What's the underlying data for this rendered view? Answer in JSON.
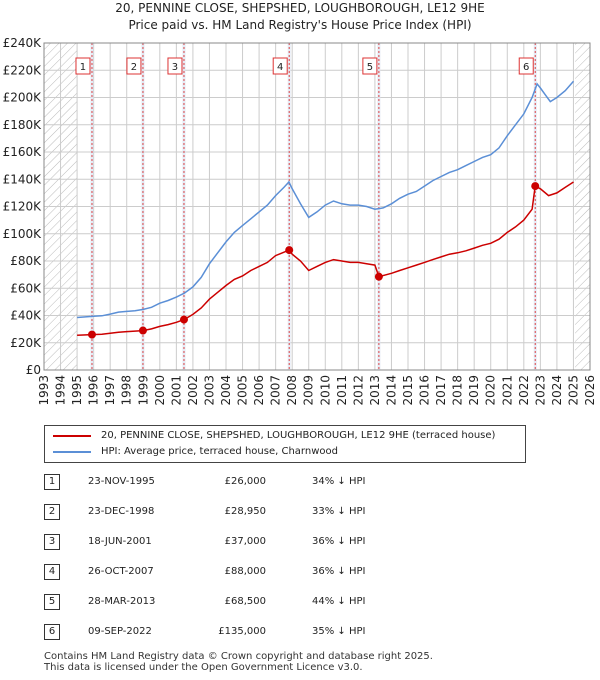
{
  "title_line1": "20, PENNINE CLOSE, SHEPSHED, LOUGHBOROUGH, LE12 9HE",
  "title_line2": "Price paid vs. HM Land Registry's House Price Index (HPI)",
  "colors": {
    "property": "#cc0000",
    "hpi": "#5b8fd6",
    "grid": "#cccccc",
    "shade": "#dfe6f3"
  },
  "legend": {
    "property": "20, PENNINE CLOSE, SHEPSHED, LOUGHBOROUGH, LE12 9HE (terraced house)",
    "hpi": "HPI: Average price, terraced house, Charnwood"
  },
  "sales": [
    {
      "num": "1",
      "date": "23-NOV-1995",
      "price": "£26,000",
      "hpi": "34% ↓ HPI"
    },
    {
      "num": "2",
      "date": "23-DEC-1998",
      "price": "£28,950",
      "hpi": "33% ↓ HPI"
    },
    {
      "num": "3",
      "date": "18-JUN-2001",
      "price": "£37,000",
      "hpi": "36% ↓ HPI"
    },
    {
      "num": "4",
      "date": "26-OCT-2007",
      "price": "£88,000",
      "hpi": "36% ↓ HPI"
    },
    {
      "num": "5",
      "date": "28-MAR-2013",
      "price": "£68,500",
      "hpi": "44% ↓ HPI"
    },
    {
      "num": "6",
      "date": "09-SEP-2022",
      "price": "£135,000",
      "hpi": "35% ↓ HPI"
    }
  ],
  "footer_line1": "Contains HM Land Registry data © Crown copyright and database right 2025.",
  "footer_line2": "This data is licensed under the Open Government Licence v3.0.",
  "chart_data": {
    "type": "line",
    "title": "Price paid vs. HM Land Registry's House Price Index (HPI)",
    "xlim": [
      1993,
      2026
    ],
    "ylim": [
      0,
      240000
    ],
    "x_ticks": [
      1993,
      1994,
      1995,
      1996,
      1997,
      1998,
      1999,
      2000,
      2001,
      2002,
      2003,
      2004,
      2005,
      2006,
      2007,
      2008,
      2009,
      2010,
      2011,
      2012,
      2013,
      2014,
      2015,
      2016,
      2017,
      2018,
      2019,
      2020,
      2021,
      2022,
      2023,
      2024,
      2025,
      2026
    ],
    "y_ticks": [
      {
        "value": 0,
        "label": "£0"
      },
      {
        "value": 20000,
        "label": "£20K"
      },
      {
        "value": 40000,
        "label": "£40K"
      },
      {
        "value": 60000,
        "label": "£60K"
      },
      {
        "value": 80000,
        "label": "£80K"
      },
      {
        "value": 100000,
        "label": "£100K"
      },
      {
        "value": 120000,
        "label": "£120K"
      },
      {
        "value": 140000,
        "label": "£140K"
      },
      {
        "value": 160000,
        "label": "£160K"
      },
      {
        "value": 180000,
        "label": "£180K"
      },
      {
        "value": 200000,
        "label": "£200K"
      },
      {
        "value": 220000,
        "label": "£220K"
      },
      {
        "value": 240000,
        "label": "£240K"
      }
    ],
    "hatched_ranges": [
      [
        1993,
        1995.0
      ],
      [
        2025.1,
        2026
      ]
    ],
    "series": [
      {
        "name": "HPI: Average price, terraced house, Charnwood",
        "points": [
          [
            1995.0,
            38500
          ],
          [
            1995.5,
            39000
          ],
          [
            1996.0,
            39500
          ],
          [
            1996.5,
            39800
          ],
          [
            1997.0,
            41000
          ],
          [
            1997.5,
            42500
          ],
          [
            1998.0,
            43000
          ],
          [
            1998.5,
            43500
          ],
          [
            1999.0,
            44500
          ],
          [
            1999.5,
            46000
          ],
          [
            2000.0,
            49000
          ],
          [
            2000.5,
            51000
          ],
          [
            2001.0,
            53500
          ],
          [
            2001.5,
            56500
          ],
          [
            2002.0,
            61000
          ],
          [
            2002.5,
            68000
          ],
          [
            2003.0,
            78000
          ],
          [
            2003.5,
            86000
          ],
          [
            2004.0,
            94000
          ],
          [
            2004.5,
            101000
          ],
          [
            2005.0,
            106000
          ],
          [
            2005.5,
            111000
          ],
          [
            2006.0,
            116000
          ],
          [
            2006.5,
            121000
          ],
          [
            2007.0,
            128000
          ],
          [
            2007.5,
            134000
          ],
          [
            2007.8,
            138000
          ],
          [
            2008.0,
            133000
          ],
          [
            2008.5,
            122000
          ],
          [
            2009.0,
            112000
          ],
          [
            2009.5,
            116000
          ],
          [
            2010.0,
            121000
          ],
          [
            2010.5,
            124000
          ],
          [
            2011.0,
            122000
          ],
          [
            2011.5,
            121000
          ],
          [
            2012.0,
            121000
          ],
          [
            2012.5,
            120000
          ],
          [
            2013.0,
            118000
          ],
          [
            2013.5,
            119000
          ],
          [
            2014.0,
            122000
          ],
          [
            2014.5,
            126000
          ],
          [
            2015.0,
            129000
          ],
          [
            2015.5,
            131000
          ],
          [
            2016.0,
            135000
          ],
          [
            2016.5,
            139000
          ],
          [
            2017.0,
            142000
          ],
          [
            2017.5,
            145000
          ],
          [
            2018.0,
            147000
          ],
          [
            2018.5,
            150000
          ],
          [
            2019.0,
            153000
          ],
          [
            2019.5,
            156000
          ],
          [
            2020.0,
            158000
          ],
          [
            2020.5,
            163000
          ],
          [
            2021.0,
            172000
          ],
          [
            2021.5,
            180000
          ],
          [
            2022.0,
            188000
          ],
          [
            2022.5,
            200000
          ],
          [
            2022.8,
            210000
          ],
          [
            2023.0,
            207000
          ],
          [
            2023.3,
            202000
          ],
          [
            2023.6,
            197000
          ],
          [
            2024.0,
            200000
          ],
          [
            2024.5,
            205000
          ],
          [
            2025.0,
            212000
          ]
        ]
      },
      {
        "name": "20, PENNINE CLOSE, SHEPSHED, LOUGHBOROUGH, LE12 9HE (terraced house)",
        "points": [
          [
            1995.0,
            25500
          ],
          [
            1995.9,
            26000
          ],
          [
            1996.5,
            26300
          ],
          [
            1997.0,
            26900
          ],
          [
            1997.5,
            27700
          ],
          [
            1998.0,
            28200
          ],
          [
            1998.98,
            28950
          ],
          [
            1999.5,
            30200
          ],
          [
            2000.0,
            32000
          ],
          [
            2000.5,
            33300
          ],
          [
            2001.0,
            35000
          ],
          [
            2001.46,
            37000
          ],
          [
            2002.0,
            40800
          ],
          [
            2002.5,
            45500
          ],
          [
            2003.0,
            52000
          ],
          [
            2003.5,
            57000
          ],
          [
            2004.0,
            62000
          ],
          [
            2004.5,
            66500
          ],
          [
            2005.0,
            69000
          ],
          [
            2005.5,
            73000
          ],
          [
            2006.0,
            76000
          ],
          [
            2006.5,
            79000
          ],
          [
            2007.0,
            84000
          ],
          [
            2007.82,
            88000
          ],
          [
            2008.0,
            85000
          ],
          [
            2008.5,
            80000
          ],
          [
            2009.0,
            73000
          ],
          [
            2009.5,
            76000
          ],
          [
            2010.0,
            79000
          ],
          [
            2010.5,
            81000
          ],
          [
            2011.0,
            80000
          ],
          [
            2011.5,
            79000
          ],
          [
            2012.0,
            79000
          ],
          [
            2012.5,
            78000
          ],
          [
            2013.0,
            77000
          ],
          [
            2013.24,
            68500
          ],
          [
            2014.0,
            71000
          ],
          [
            2014.5,
            73000
          ],
          [
            2015.0,
            75000
          ],
          [
            2015.5,
            77000
          ],
          [
            2016.0,
            79000
          ],
          [
            2016.5,
            81000
          ],
          [
            2017.0,
            83000
          ],
          [
            2017.5,
            85000
          ],
          [
            2018.0,
            86000
          ],
          [
            2018.5,
            87500
          ],
          [
            2019.0,
            89500
          ],
          [
            2019.5,
            91500
          ],
          [
            2020.0,
            93000
          ],
          [
            2020.5,
            96000
          ],
          [
            2021.0,
            101000
          ],
          [
            2021.5,
            105000
          ],
          [
            2022.0,
            110000
          ],
          [
            2022.5,
            118000
          ],
          [
            2022.69,
            135000
          ],
          [
            2023.0,
            133000
          ],
          [
            2023.5,
            128000
          ],
          [
            2024.0,
            130000
          ],
          [
            2024.5,
            134000
          ],
          [
            2025.0,
            138000
          ]
        ]
      }
    ],
    "sale_points": [
      {
        "label": "1",
        "x": 1995.9,
        "y": 26000
      },
      {
        "label": "2",
        "x": 1998.98,
        "y": 28950
      },
      {
        "label": "3",
        "x": 2001.46,
        "y": 37000
      },
      {
        "label": "4",
        "x": 2007.82,
        "y": 88000
      },
      {
        "label": "5",
        "x": 2013.24,
        "y": 68500
      },
      {
        "label": "6",
        "x": 2022.69,
        "y": 135000
      }
    ]
  }
}
